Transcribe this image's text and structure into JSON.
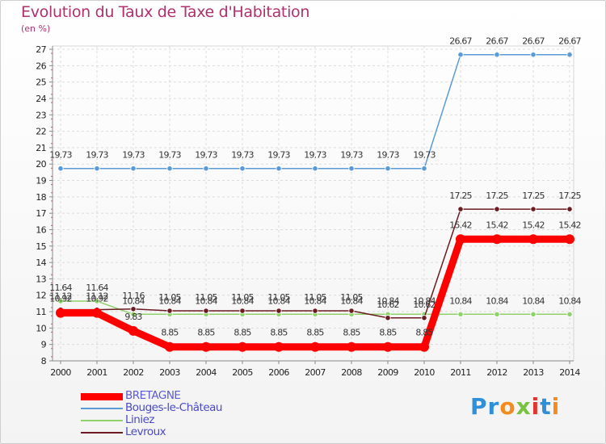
{
  "chart_data": {
    "type": "line",
    "title": "Evolution du Taux de Taxe d'Habitation",
    "subtitle": "(en %)",
    "xlabel": "",
    "ylabel": "",
    "x": [
      "2000",
      "2001",
      "2002",
      "2003",
      "2004",
      "2005",
      "2006",
      "2007",
      "2008",
      "2009",
      "2010",
      "2011",
      "2012",
      "2013",
      "2014"
    ],
    "ylim": [
      8,
      27
    ],
    "yticks": [
      8,
      9,
      10,
      11,
      12,
      13,
      14,
      15,
      16,
      17,
      18,
      19,
      20,
      21,
      22,
      23,
      24,
      25,
      26,
      27
    ],
    "grid": true,
    "legend_position": "bottom-left",
    "series": [
      {
        "name": "BRETAGNE",
        "color": "#ff0000",
        "values": [
          10.92,
          10.92,
          9.83,
          8.85,
          8.85,
          8.85,
          8.85,
          8.85,
          8.85,
          8.85,
          8.85,
          15.42,
          15.42,
          15.42,
          15.42
        ],
        "labels": [
          "10.92",
          "10.92",
          "9.83",
          "8.85",
          "8.85",
          "8.85",
          "8.85",
          "8.85",
          "8.85",
          "8.85",
          "8.85",
          "15.42",
          "15.42",
          "15.42",
          "15.42"
        ]
      },
      {
        "name": "Bouges-le-Château",
        "color": "#5b9bd5",
        "values": [
          19.73,
          19.73,
          19.73,
          19.73,
          19.73,
          19.73,
          19.73,
          19.73,
          19.73,
          19.73,
          19.73,
          26.67,
          26.67,
          26.67,
          26.67
        ],
        "labels": [
          "19.73",
          "19.73",
          "19.73",
          "19.73",
          "19.73",
          "19.73",
          "19.73",
          "19.73",
          "19.73",
          "19.73",
          "19.73",
          "26.67",
          "26.67",
          "26.67",
          "26.67"
        ]
      },
      {
        "name": "Liniez",
        "color": "#8fd26a",
        "values": [
          11.64,
          11.64,
          10.84,
          10.84,
          10.84,
          10.84,
          10.84,
          10.84,
          10.84,
          10.84,
          10.84,
          10.84,
          10.84,
          10.84,
          10.84
        ],
        "labels": [
          "11.64",
          "11.64",
          "10.84",
          "10.84",
          "10.84",
          "10.84",
          "10.84",
          "10.84",
          "10.84",
          "10.84",
          "10.84",
          "10.84",
          "10.84",
          "10.84",
          "10.84"
        ]
      },
      {
        "name": "Levroux",
        "color": "#6b1b22",
        "values": [
          11.12,
          11.12,
          11.16,
          11.05,
          11.05,
          11.05,
          11.05,
          11.05,
          11.05,
          10.62,
          10.62,
          17.25,
          17.25,
          17.25,
          17.25
        ],
        "labels": [
          "11.12",
          "11.12",
          "11.16",
          "11.05",
          "11.05",
          "11.05",
          "11.05",
          "11.05",
          "11.05",
          "10.62",
          "10.62",
          "17.25",
          "17.25",
          "17.25",
          "17.25"
        ]
      }
    ]
  },
  "brand": {
    "text": "Proxiti",
    "letters": [
      {
        "ch": "P",
        "color": "#2f8fd8"
      },
      {
        "ch": "r",
        "color": "#2f8fd8"
      },
      {
        "ch": "o",
        "color": "#f28c1e"
      },
      {
        "ch": "x",
        "color": "#7cc242"
      },
      {
        "ch": "i",
        "color": "#e3342f"
      },
      {
        "ch": "t",
        "color": "#2f8fd8"
      },
      {
        "ch": "i",
        "color": "#f28c1e"
      }
    ]
  }
}
